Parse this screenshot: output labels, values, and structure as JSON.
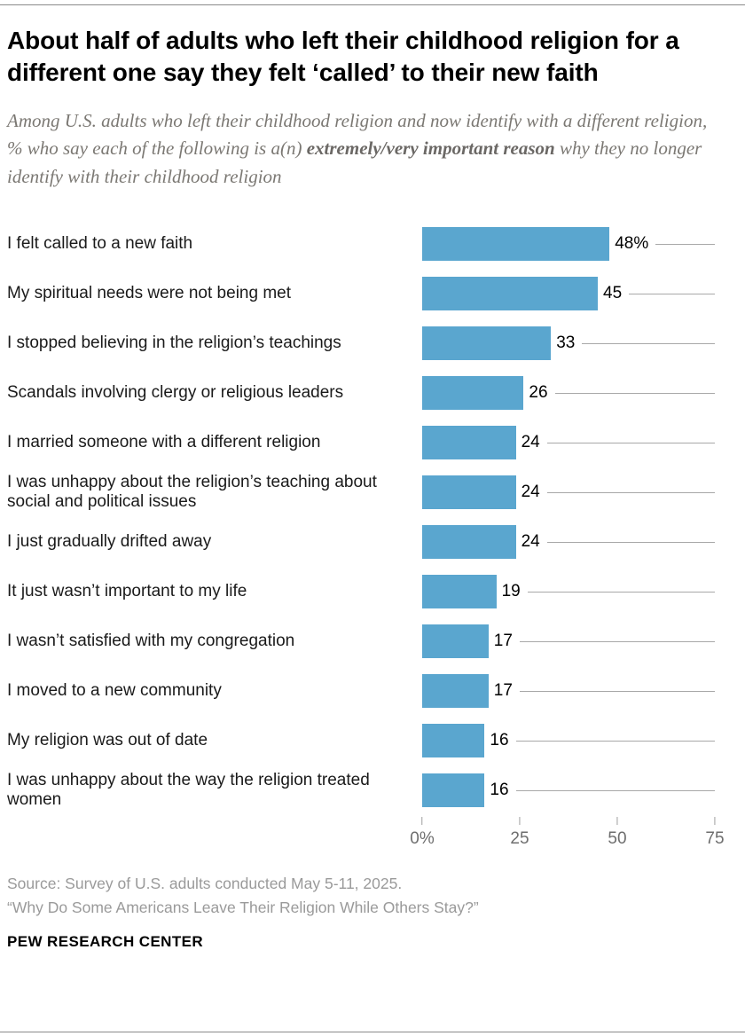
{
  "header": {
    "title": "About half of adults who left their childhood religion for a different one say they felt ‘called’ to their new faith",
    "subtitle_prefix": "Among U.S. adults who left their childhood religion and now identify with a different religion, % who say each of the following is a(n) ",
    "subtitle_bold": "extremely/very important reason",
    "subtitle_suffix": " why they no longer identify with their childhood religion"
  },
  "chart_data": {
    "type": "bar",
    "orientation": "horizontal",
    "bar_color": "#5aa6cf",
    "categories": [
      "I felt called to a new faith",
      "My spiritual needs were not being met",
      "I stopped believing in the religion’s teachings",
      "Scandals involving clergy or religious leaders",
      "I married someone with a different religion",
      "I was unhappy about the religion’s teaching about social and political issues",
      "I just gradually drifted away",
      "It just wasn’t important to my life",
      "I wasn’t satisfied with my congregation",
      "I moved to a new community",
      "My religion was out of date",
      "I was unhappy about the way the religion treated women"
    ],
    "values": [
      48,
      45,
      33,
      26,
      24,
      24,
      24,
      19,
      17,
      17,
      16,
      16
    ],
    "value_labels": [
      "48%",
      "45",
      "33",
      "26",
      "24",
      "24",
      "24",
      "19",
      "17",
      "17",
      "16",
      "16"
    ],
    "xlim": [
      0,
      75
    ],
    "x_tick_values": [
      0,
      25,
      50,
      75
    ],
    "x_tick_labels": [
      "0%",
      "25",
      "50",
      "75"
    ],
    "grid": "leader-lines",
    "legend": "none"
  },
  "footer": {
    "source_line1": "Source: Survey of U.S. adults conducted May 5-11, 2025.",
    "source_line2": "“Why Do Some Americans Leave Their Religion While Others Stay?”",
    "brand": "PEW RESEARCH CENTER"
  }
}
